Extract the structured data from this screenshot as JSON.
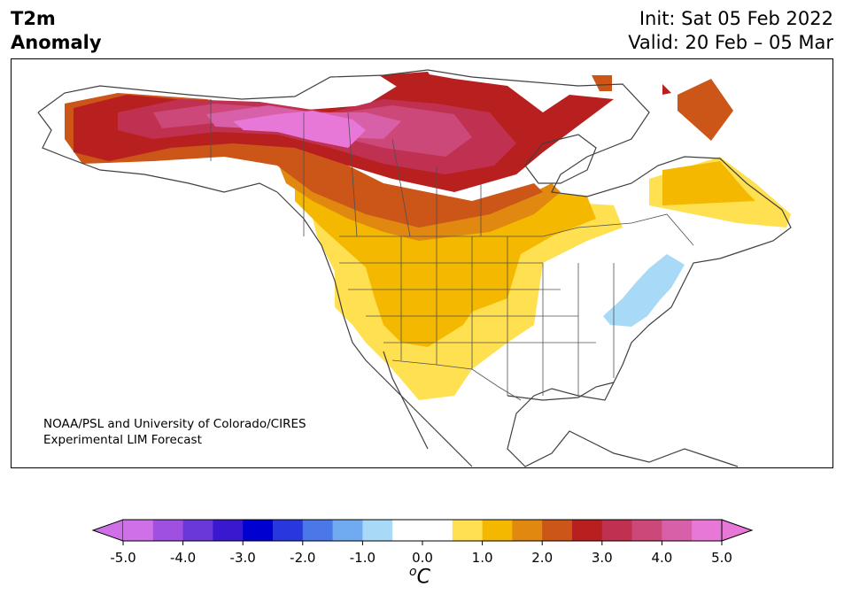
{
  "header": {
    "title_line1": "T2m",
    "title_line2": "Anomaly",
    "init_line": "Init: Sat 05 Feb 2022",
    "valid_line": "Valid: 20 Feb – 05 Mar"
  },
  "credit": {
    "line1": "NOAA/PSL and University of Colorado/CIRES",
    "line2": "Experimental LIM Forecast"
  },
  "colorbar": {
    "unit_base": "C",
    "unit_sup": "o",
    "ticks": [
      "-5.0",
      "-4.0",
      "-3.0",
      "-2.0",
      "-1.0",
      "0.0",
      "1.0",
      "2.0",
      "3.0",
      "4.0",
      "5.0"
    ],
    "colors": [
      "#d070e8",
      "#a050e0",
      "#6a38d8",
      "#3a18d0",
      "#0000d0",
      "#2838dc",
      "#4a78e8",
      "#70aaf0",
      "#a8daf8",
      "#ffffff",
      "#ffffff",
      "#ffe050",
      "#f4b800",
      "#e08810",
      "#cc5518",
      "#b82020",
      "#c03050",
      "#cc4878",
      "#d860a8",
      "#e878d8"
    ],
    "under_color": "#d070e8",
    "over_color": "#e878d8"
  },
  "legend_colors": {
    "warm_strong": "#b82020",
    "warm_max": "#e878d8",
    "cold_weak": "#a8daf8"
  }
}
